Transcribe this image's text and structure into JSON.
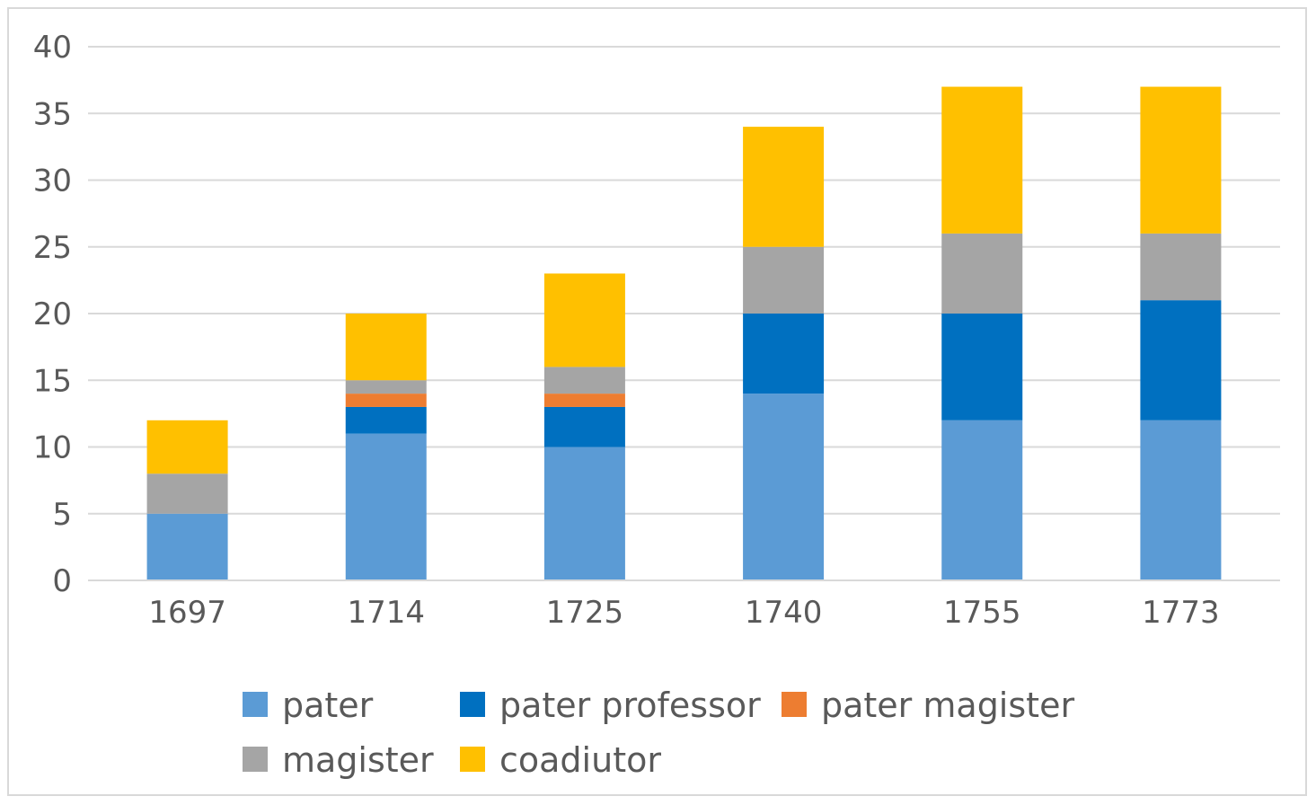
{
  "chart_data": {
    "type": "bar",
    "stacked": true,
    "categories": [
      "1697",
      "1714",
      "1725",
      "1740",
      "1755",
      "1773"
    ],
    "series": [
      {
        "name": "pater",
        "color": "#5b9bd5",
        "values": [
          5,
          11,
          10,
          14,
          12,
          12
        ]
      },
      {
        "name": "pater professor",
        "color": "#0070c0",
        "values": [
          0,
          2,
          3,
          6,
          8,
          9
        ]
      },
      {
        "name": "pater magister",
        "color": "#ed7d31",
        "values": [
          0,
          1,
          1,
          0,
          0,
          0
        ]
      },
      {
        "name": "magister",
        "color": "#a5a5a5",
        "values": [
          3,
          1,
          2,
          5,
          6,
          5
        ]
      },
      {
        "name": "coadiutor",
        "color": "#ffc000",
        "values": [
          4,
          5,
          7,
          9,
          11,
          11
        ]
      }
    ],
    "title": "",
    "xlabel": "",
    "ylabel": "",
    "ylim": [
      0,
      40
    ],
    "yticks": [
      "0",
      "5",
      "10",
      "15",
      "20",
      "25",
      "30",
      "35",
      "40"
    ],
    "grid": true,
    "legend_position": "bottom"
  }
}
